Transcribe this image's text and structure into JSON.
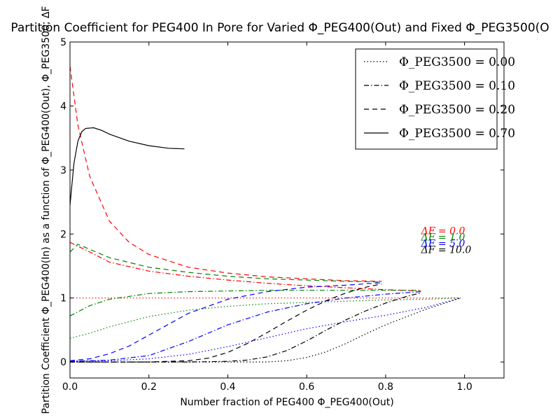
{
  "chart_data": {
    "type": "line",
    "title": "Partition Coefficient for PEG400 In Pore for Varied Φ_PEG400(Out) and Fixed Φ_PEG3500(O",
    "xlabel": "Number fraction of PEG400 Φ_PEG400(Out)",
    "ylabel": "Partition Coefficient Φ_PEG400(In) as a function of Φ_PEG400(Out), Φ_PEG3500, ΔF",
    "xlim": [
      0.0,
      1.1
    ],
    "ylim": [
      -0.25,
      5.0
    ],
    "xticks": [
      "0.0",
      "0.2",
      "0.4",
      "0.6",
      "0.8",
      "1.0"
    ],
    "yticks": [
      "0",
      "1",
      "2",
      "3",
      "4",
      "5"
    ],
    "grid": false,
    "legend_position": "top-right",
    "legend": [
      {
        "label": "Φ_PEG3500 = 0.00",
        "dash": "dotted"
      },
      {
        "label": "Φ_PEG3500 = 0.10",
        "dash": "dashdot"
      },
      {
        "label": "Φ_PEG3500 = 0.20",
        "dash": "dashed"
      },
      {
        "label": "Φ_PEG3500 = 0.70",
        "dash": "solid"
      }
    ],
    "annotations": [
      {
        "text": "ΔF = 0.0",
        "color": "#ff0000",
        "x": 0.89,
        "y": 2.0
      },
      {
        "text": "ΔF = 1.0",
        "color": "#008000",
        "x": 0.89,
        "y": 1.9
      },
      {
        "text": "ΔF = 5.0",
        "color": "#0000ff",
        "x": 0.89,
        "y": 1.8
      },
      {
        "text": "ΔF = 10.0",
        "color": "#000000",
        "x": 0.89,
        "y": 1.7
      }
    ],
    "series": [
      {
        "phi3500": "0.00",
        "deltaF": "0.0",
        "color": "#ff0000",
        "dash": "dotted",
        "x": [
          0.0,
          0.2,
          0.4,
          0.6,
          0.8,
          0.99
        ],
        "y": [
          1.0,
          1.0,
          1.0,
          1.0,
          1.0,
          1.0
        ]
      },
      {
        "phi3500": "0.00",
        "deltaF": "1.0",
        "color": "#008000",
        "dash": "dotted",
        "x": [
          0.0,
          0.05,
          0.1,
          0.2,
          0.3,
          0.4,
          0.5,
          0.6,
          0.7,
          0.8,
          0.9,
          0.99
        ],
        "y": [
          0.37,
          0.45,
          0.55,
          0.71,
          0.81,
          0.87,
          0.91,
          0.93,
          0.95,
          0.97,
          0.98,
          1.0
        ]
      },
      {
        "phi3500": "0.00",
        "deltaF": "5.0",
        "color": "#0000ff",
        "dash": "dotted",
        "x": [
          0.0,
          0.1,
          0.2,
          0.3,
          0.4,
          0.5,
          0.6,
          0.7,
          0.8,
          0.9,
          0.99
        ],
        "y": [
          0.01,
          0.02,
          0.05,
          0.12,
          0.24,
          0.38,
          0.52,
          0.63,
          0.73,
          0.85,
          1.0
        ]
      },
      {
        "phi3500": "0.00",
        "deltaF": "10.0",
        "color": "#000000",
        "dash": "dotted",
        "x": [
          0.0,
          0.3,
          0.5,
          0.55,
          0.6,
          0.65,
          0.7,
          0.75,
          0.8,
          0.85,
          0.9,
          0.95,
          0.99
        ],
        "y": [
          0.0,
          0.0,
          0.0,
          0.02,
          0.07,
          0.16,
          0.29,
          0.44,
          0.58,
          0.7,
          0.82,
          0.92,
          1.0
        ]
      },
      {
        "phi3500": "0.10",
        "deltaF": "0.0",
        "color": "#ff0000",
        "dash": "dashdot",
        "x": [
          0.0,
          0.05,
          0.1,
          0.2,
          0.3,
          0.4,
          0.5,
          0.6,
          0.7,
          0.8,
          0.89
        ],
        "y": [
          1.87,
          1.72,
          1.56,
          1.42,
          1.34,
          1.28,
          1.23,
          1.19,
          1.16,
          1.13,
          1.11
        ]
      },
      {
        "phi3500": "0.10",
        "deltaF": "1.0",
        "color": "#008000",
        "dash": "dashdot",
        "x": [
          0.0,
          0.05,
          0.1,
          0.2,
          0.3,
          0.4,
          0.5,
          0.6,
          0.7,
          0.8,
          0.89
        ],
        "y": [
          0.72,
          0.88,
          0.98,
          1.07,
          1.1,
          1.11,
          1.12,
          1.12,
          1.12,
          1.12,
          1.12
        ]
      },
      {
        "phi3500": "0.10",
        "deltaF": "5.0",
        "color": "#0000ff",
        "dash": "dashdot",
        "x": [
          0.0,
          0.1,
          0.2,
          0.3,
          0.4,
          0.5,
          0.6,
          0.7,
          0.8,
          0.89
        ],
        "y": [
          0.01,
          0.03,
          0.1,
          0.32,
          0.58,
          0.78,
          0.91,
          1.0,
          1.06,
          1.1
        ]
      },
      {
        "phi3500": "0.10",
        "deltaF": "10.0",
        "color": "#000000",
        "dash": "dashdot",
        "x": [
          0.0,
          0.3,
          0.4,
          0.45,
          0.5,
          0.55,
          0.6,
          0.65,
          0.7,
          0.75,
          0.8,
          0.85,
          0.89
        ],
        "y": [
          0.0,
          0.0,
          0.01,
          0.03,
          0.08,
          0.18,
          0.33,
          0.5,
          0.66,
          0.8,
          0.92,
          1.02,
          1.08
        ]
      },
      {
        "phi3500": "0.20",
        "deltaF": "0.0",
        "color": "#ff0000",
        "dash": "dashed",
        "x": [
          0.0,
          0.02,
          0.05,
          0.1,
          0.15,
          0.2,
          0.3,
          0.4,
          0.5,
          0.6,
          0.7,
          0.79
        ],
        "y": [
          4.62,
          3.7,
          2.9,
          2.2,
          1.87,
          1.68,
          1.48,
          1.39,
          1.33,
          1.3,
          1.27,
          1.26
        ]
      },
      {
        "phi3500": "0.20",
        "deltaF": "1.0",
        "color": "#008000",
        "dash": "dashed",
        "x": [
          0.0,
          0.02,
          0.05,
          0.1,
          0.2,
          0.3,
          0.4,
          0.5,
          0.6,
          0.7,
          0.79
        ],
        "y": [
          1.72,
          1.84,
          1.76,
          1.63,
          1.48,
          1.4,
          1.34,
          1.3,
          1.28,
          1.26,
          1.25
        ]
      },
      {
        "phi3500": "0.20",
        "deltaF": "5.0",
        "color": "#0000ff",
        "dash": "dashed",
        "x": [
          0.0,
          0.05,
          0.1,
          0.15,
          0.2,
          0.3,
          0.4,
          0.5,
          0.6,
          0.7,
          0.79
        ],
        "y": [
          0.02,
          0.05,
          0.13,
          0.25,
          0.42,
          0.76,
          0.98,
          1.1,
          1.17,
          1.2,
          1.24
        ]
      },
      {
        "phi3500": "0.20",
        "deltaF": "10.0",
        "color": "#000000",
        "dash": "dashed",
        "x": [
          0.0,
          0.2,
          0.3,
          0.35,
          0.4,
          0.45,
          0.5,
          0.55,
          0.6,
          0.65,
          0.7,
          0.75,
          0.79
        ],
        "y": [
          0.0,
          0.0,
          0.02,
          0.06,
          0.15,
          0.29,
          0.46,
          0.64,
          0.81,
          0.96,
          1.08,
          1.17,
          1.22
        ]
      },
      {
        "phi3500": "0.70",
        "deltaF": "10.0",
        "color": "#000000",
        "dash": "solid",
        "x": [
          0.0,
          0.01,
          0.02,
          0.03,
          0.04,
          0.06,
          0.08,
          0.1,
          0.15,
          0.2,
          0.25,
          0.29
        ],
        "y": [
          2.45,
          3.1,
          3.45,
          3.6,
          3.65,
          3.66,
          3.62,
          3.56,
          3.45,
          3.38,
          3.34,
          3.33
        ]
      }
    ]
  }
}
